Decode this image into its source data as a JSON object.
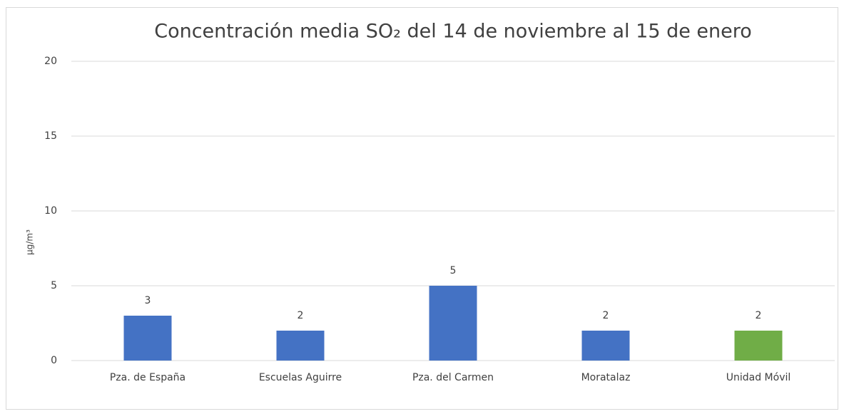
{
  "chart_data": {
    "type": "bar",
    "title": "Concentración media SO₂ del 14 de noviembre al 15 de enero",
    "y_label": "µg/m³",
    "categories": [
      "Pza. de España",
      "Escuelas Aguirre",
      "Pza. del Carmen",
      "Moratalaz",
      "Unidad Móvil"
    ],
    "values": [
      3,
      2,
      5,
      2,
      2
    ],
    "colors": [
      "#4472c4",
      "#4472c4",
      "#4472c4",
      "#4472c4",
      "#70ad47"
    ],
    "ylim": [
      0,
      20
    ],
    "yticks": [
      0,
      5,
      10,
      15,
      20
    ],
    "grid": true
  }
}
